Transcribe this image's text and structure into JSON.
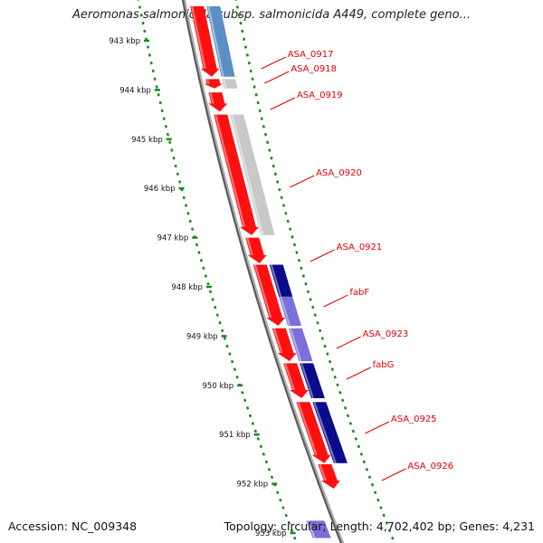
{
  "title": "Aeromonas salmonicida subsp. salmonicida A449, complete geno...",
  "footer": {
    "accession": "Accession: NC_009348",
    "summary": "Topology: circular; Length: 4,702,402 bp; Genes: 4,231"
  },
  "colors": {
    "background": "#ffffff",
    "backbone": "#8a8a8a",
    "ruler": "#1a8a1a",
    "cds": "#ff1010",
    "gene_label": "#e00000",
    "gray_feature": "#c8c8c8",
    "blue_feature": "#5b8fc4",
    "navy_feature": "#0a0a8a",
    "violet_feature": "#7b6fd8"
  },
  "scale": {
    "ticks_kbp": [
      943,
      944,
      945,
      946,
      947,
      948,
      949,
      950,
      951,
      952,
      953
    ],
    "tick_labels": [
      "943 kbp",
      "944 kbp",
      "945 kbp",
      "946 kbp",
      "947 kbp",
      "948 kbp",
      "949 kbp",
      "950 kbp",
      "951 kbp",
      "952 kbp",
      "953 kbp"
    ]
  },
  "genes": [
    {
      "label": "ASA_0917",
      "start_kbp": 942.3,
      "end_kbp": 943.73
    },
    {
      "label": "ASA_0918",
      "start_kbp": 943.78,
      "end_kbp": 943.97
    },
    {
      "label": "ASA_0919",
      "start_kbp": 944.05,
      "end_kbp": 944.44
    },
    {
      "label": "ASA_0920",
      "start_kbp": 944.5,
      "end_kbp": 946.95
    },
    {
      "label": "ASA_0921",
      "start_kbp": 947.0,
      "end_kbp": 947.52
    },
    {
      "label": "fabF",
      "start_kbp": 947.55,
      "end_kbp": 948.79
    },
    {
      "label": "ASA_0923",
      "start_kbp": 948.84,
      "end_kbp": 949.51
    },
    {
      "label": "fabG",
      "start_kbp": 949.55,
      "end_kbp": 950.26
    },
    {
      "label": "ASA_0925",
      "start_kbp": 950.34,
      "end_kbp": 951.58
    },
    {
      "label": "ASA_0926",
      "start_kbp": 951.6,
      "end_kbp": 952.1
    }
  ],
  "tracks": {
    "outer_features": [
      {
        "start_kbp": 942.3,
        "end_kbp": 943.73,
        "color": "blue_feature"
      },
      {
        "start_kbp": 943.78,
        "end_kbp": 943.97,
        "color": "gray_feature"
      },
      {
        "start_kbp": 944.5,
        "end_kbp": 946.95,
        "color": "gray_feature"
      },
      {
        "start_kbp": 947.55,
        "end_kbp": 948.2,
        "color": "navy_feature"
      },
      {
        "start_kbp": 948.2,
        "end_kbp": 948.79,
        "color": "violet_feature"
      },
      {
        "start_kbp": 948.84,
        "end_kbp": 949.51,
        "color": "violet_feature"
      },
      {
        "start_kbp": 949.55,
        "end_kbp": 950.26,
        "color": "navy_feature"
      },
      {
        "start_kbp": 950.34,
        "end_kbp": 950.6,
        "color": "navy_feature"
      },
      {
        "start_kbp": 950.6,
        "end_kbp": 951.58,
        "color": "navy_feature"
      }
    ],
    "lower_features": [
      {
        "start_kbp": 952.75,
        "end_kbp": 953.1,
        "color": "violet_feature"
      }
    ]
  }
}
